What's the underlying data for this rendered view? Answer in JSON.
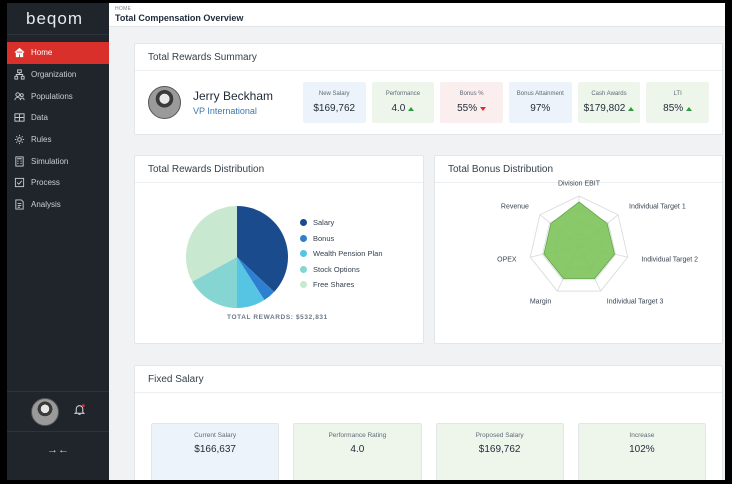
{
  "app": {
    "logo": "beqom"
  },
  "header": {
    "breadcrumb": "HOME",
    "title": "Total Compensation Overview"
  },
  "sidebar": {
    "items": [
      {
        "label": "Home",
        "icon": "home-icon",
        "active": true
      },
      {
        "label": "Organization",
        "icon": "organization-icon"
      },
      {
        "label": "Populations",
        "icon": "populations-icon"
      },
      {
        "label": "Data",
        "icon": "data-icon"
      },
      {
        "label": "Rules",
        "icon": "gear-icon"
      },
      {
        "label": "Simulation",
        "icon": "calculator-icon"
      },
      {
        "label": "Process",
        "icon": "checklist-icon"
      },
      {
        "label": "Analysis",
        "icon": "report-icon"
      }
    ],
    "collapse_symbol": "→←"
  },
  "summary": {
    "title": "Total Rewards Summary",
    "name": "Jerry Beckham",
    "role": "VP International",
    "stats": [
      {
        "label": "New Salary",
        "value": "$169,762",
        "trend": "none",
        "tone": "blue"
      },
      {
        "label": "Performance",
        "value": "4.0",
        "trend": "up",
        "tone": "green"
      },
      {
        "label": "Bonus %",
        "value": "55%",
        "trend": "down",
        "tone": "red"
      },
      {
        "label": "Bonus Attainment",
        "value": "97%",
        "trend": "none",
        "tone": "blue"
      },
      {
        "label": "Cash Awards",
        "value": "$179,802",
        "trend": "up",
        "tone": "green"
      },
      {
        "label": "LTI",
        "value": "85%",
        "trend": "up",
        "tone": "green"
      }
    ]
  },
  "distribution": {
    "title": "Total Rewards Distribution",
    "total_label": "TOTAL REWARDS: $532,831",
    "chart_data": {
      "type": "pie",
      "labels": [
        "Salary",
        "Bonus",
        "Wealth Pension Plan",
        "Stock Options",
        "Free Shares"
      ],
      "values": [
        37,
        4,
        9,
        17,
        33
      ],
      "colors": [
        "#1a4b8c",
        "#2f7fd0",
        "#56c4e3",
        "#85d5d2",
        "#c8e8cf"
      ]
    }
  },
  "bonus": {
    "title": "Total Bonus Distribution",
    "chart_data": {
      "type": "radar",
      "axes": [
        "Division EBIT",
        "Individual Target 1",
        "Individual Target 2",
        "Individual Target 3",
        "Margin",
        "OPEX",
        "Revenue"
      ],
      "values": [
        0.88,
        0.72,
        0.73,
        0.72,
        0.72,
        0.72,
        0.72
      ],
      "fill": "#7cc35a"
    }
  },
  "fixed": {
    "title": "Fixed Salary",
    "boxes": [
      {
        "label": "Current Salary",
        "value": "$166,637",
        "tone": "blue"
      },
      {
        "label": "Performance Rating",
        "value": "4.0",
        "tone": "green"
      },
      {
        "label": "Proposed Salary",
        "value": "$169,762",
        "tone": "green"
      },
      {
        "label": "Increase",
        "value": "102%",
        "tone": "green"
      }
    ]
  }
}
